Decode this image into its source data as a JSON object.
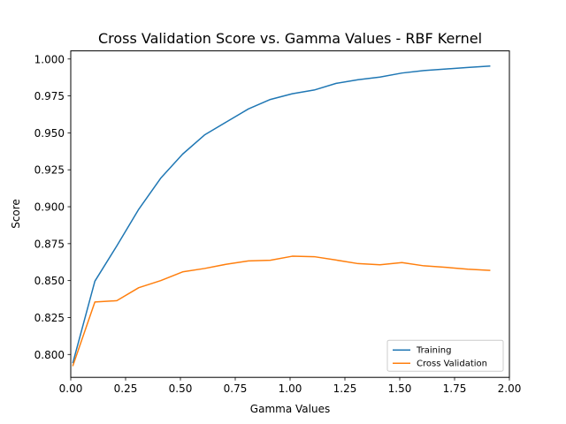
{
  "chart_data": {
    "type": "line",
    "title": "Cross Validation Score vs. Gamma Values - RBF Kernel",
    "xlabel": "Gamma Values",
    "ylabel": "Score",
    "xlim": [
      0.0,
      2.0
    ],
    "ylim": [
      0.7845,
      1.0055
    ],
    "xticks": [
      "0.00",
      "0.25",
      "0.50",
      "0.75",
      "1.00",
      "1.25",
      "1.50",
      "1.75",
      "2.00"
    ],
    "yticks": [
      "0.800",
      "0.825",
      "0.850",
      "0.875",
      "0.900",
      "0.925",
      "0.950",
      "0.975",
      "1.000"
    ],
    "grid": false,
    "legend_position": "lower-right",
    "x": [
      0.01,
      0.11,
      0.21,
      0.31,
      0.41,
      0.51,
      0.61,
      0.71,
      0.81,
      0.91,
      1.01,
      1.11,
      1.21,
      1.31,
      1.41,
      1.51,
      1.61,
      1.71,
      1.81,
      1.91
    ],
    "series": [
      {
        "name": "Training",
        "color": "#1f77b4",
        "values": [
          0.7945,
          0.8496,
          0.8735,
          0.8983,
          0.9193,
          0.9356,
          0.9486,
          0.9574,
          0.9662,
          0.9726,
          0.9765,
          0.979,
          0.9835,
          0.986,
          0.9878,
          0.9905,
          0.9922,
          0.9932,
          0.9943,
          0.9952
        ]
      },
      {
        "name": "Cross Validation",
        "color": "#ff7f0e",
        "values": [
          0.7925,
          0.8355,
          0.8364,
          0.8452,
          0.85,
          0.8559,
          0.8582,
          0.8611,
          0.8633,
          0.8638,
          0.8665,
          0.8662,
          0.8639,
          0.8615,
          0.8607,
          0.8622,
          0.86,
          0.859,
          0.8577,
          0.8569
        ]
      }
    ]
  }
}
